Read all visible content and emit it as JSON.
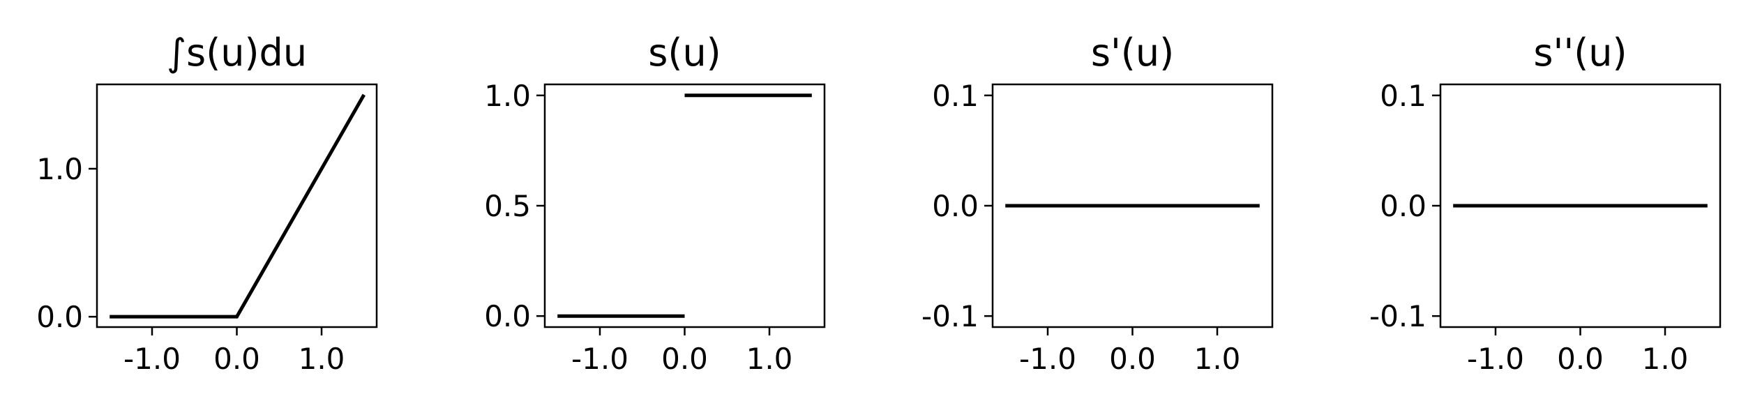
{
  "chart_data": [
    {
      "type": "line",
      "title": "∫s(u)du",
      "xlim": [
        -1.65,
        1.65
      ],
      "ylim": [
        -0.07,
        1.57
      ],
      "xticks": [
        -1.0,
        0.0,
        1.0
      ],
      "xtick_labels": [
        "-1.0",
        "0.0",
        "1.0"
      ],
      "yticks": [
        0.0,
        1.0
      ],
      "ytick_labels": [
        "0.0",
        "1.0"
      ],
      "series": [
        {
          "segments": [
            [
              [
                -1.5,
                0.0
              ],
              [
                0.0,
                0.0
              ],
              [
                1.5,
                1.5
              ]
            ]
          ]
        }
      ],
      "grid": false
    },
    {
      "type": "line",
      "title": "s(u)",
      "xlim": [
        -1.65,
        1.65
      ],
      "ylim": [
        -0.05,
        1.05
      ],
      "xticks": [
        -1.0,
        0.0,
        1.0
      ],
      "xtick_labels": [
        "-1.0",
        "0.0",
        "1.0"
      ],
      "yticks": [
        0.0,
        0.5,
        1.0
      ],
      "ytick_labels": [
        "0.0",
        "0.5",
        "1.0"
      ],
      "series": [
        {
          "segments": [
            [
              [
                -1.5,
                0.0
              ],
              [
                0.0,
                0.0
              ]
            ],
            [
              [
                0.0,
                1.0
              ],
              [
                1.5,
                1.0
              ]
            ]
          ]
        }
      ],
      "grid": false
    },
    {
      "type": "line",
      "title": "s'(u)",
      "xlim": [
        -1.65,
        1.65
      ],
      "ylim": [
        -0.11,
        0.11
      ],
      "xticks": [
        -1.0,
        0.0,
        1.0
      ],
      "xtick_labels": [
        "-1.0",
        "0.0",
        "1.0"
      ],
      "yticks": [
        -0.1,
        0.0,
        0.1
      ],
      "ytick_labels": [
        "-0.1",
        "0.0",
        "0.1"
      ],
      "series": [
        {
          "segments": [
            [
              [
                -1.5,
                0.0
              ],
              [
                1.5,
                0.0
              ]
            ]
          ]
        }
      ],
      "grid": false
    },
    {
      "type": "line",
      "title": "s''(u)",
      "xlim": [
        -1.65,
        1.65
      ],
      "ylim": [
        -0.11,
        0.11
      ],
      "xticks": [
        -1.0,
        0.0,
        1.0
      ],
      "xtick_labels": [
        "-1.0",
        "0.0",
        "1.0"
      ],
      "yticks": [
        -0.1,
        0.0,
        0.1
      ],
      "ytick_labels": [
        "-0.1",
        "0.0",
        "0.1"
      ],
      "series": [
        {
          "segments": [
            [
              [
                -1.5,
                0.0
              ],
              [
                1.5,
                0.0
              ]
            ]
          ]
        }
      ],
      "grid": false
    }
  ]
}
